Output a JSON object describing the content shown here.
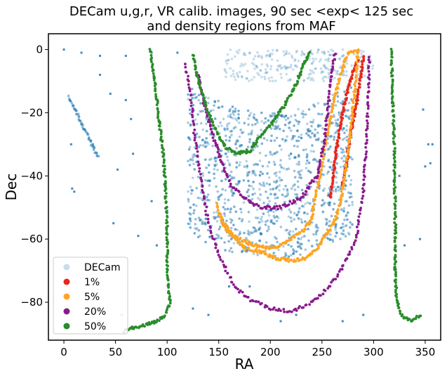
{
  "chart_data": {
    "type": "scatter",
    "title_line1": "DECam u,g,r, VR calib. images, 90 sec <exp< 125 sec",
    "title_line2": "and density regions from MAF",
    "xlabel": "RA",
    "ylabel": "Dec",
    "xlim": [
      -15,
      365
    ],
    "ylim": [
      -92,
      5
    ],
    "xticks": [
      0,
      50,
      100,
      150,
      200,
      250,
      300,
      350
    ],
    "yticks": [
      0,
      -20,
      -40,
      -60,
      -80
    ],
    "legend_position": "lower-left",
    "series": [
      {
        "name": "DECam",
        "color": "#1f77b4",
        "regions": {
          "top_band": {
            "ra": [
              155,
              300
            ],
            "dec": [
              -10,
              0
            ]
          },
          "dense_bowl_pattern": "points near the lower parts of the magenta, orange and red curves and inside them, between RA 120 and 275",
          "diagonal_stripe": {
            "start": [
              5,
              -15
            ],
            "end": [
              33,
              -34
            ]
          },
          "scattered": [
            [
              0,
              0
            ],
            [
              17,
              -1
            ],
            [
              35,
              -2
            ],
            [
              60,
              -2
            ],
            [
              85,
              -1
            ],
            [
              110,
              -1
            ],
            [
              7,
              -30
            ],
            [
              28,
              -30
            ],
            [
              65,
              -22
            ],
            [
              67,
              -33
            ],
            [
              52,
              -38
            ],
            [
              8,
              -44
            ],
            [
              10,
              -45
            ],
            [
              48,
              -55
            ],
            [
              72,
              -59
            ],
            [
              56,
              -84
            ],
            [
              80,
              -87
            ],
            [
              125,
              -82
            ],
            [
              140,
              -84
            ],
            [
              160,
              -75
            ],
            [
              180,
              -75
            ],
            [
              210,
              -86
            ],
            [
              225,
              -84
            ],
            [
              270,
              -86
            ],
            [
              290,
              -84
            ],
            [
              325,
              -40
            ],
            [
              348,
              -19
            ],
            [
              350,
              -37
            ],
            [
              355,
              -36
            ],
            [
              345,
              -60
            ],
            [
              353,
              -30
            ],
            [
              357,
              -30
            ],
            [
              320,
              -69
            ],
            [
              330,
              -62
            ],
            [
              35,
              -8
            ],
            [
              45,
              -14
            ],
            [
              60,
              -16
            ],
            [
              90,
              -62
            ],
            [
              100,
              -51
            ],
            [
              85,
              -48
            ],
            [
              220,
              -33
            ],
            [
              230,
              -28
            ]
          ]
        }
      },
      {
        "name": "1%",
        "color": "#e8261b",
        "curve": {
          "left_arm": [
            [
              258,
              -47
            ],
            [
              261,
              -40
            ],
            [
              263,
              -34
            ],
            [
              266,
              -28
            ],
            [
              270,
              -20
            ],
            [
              274,
              -14
            ],
            [
              279,
              -8
            ],
            [
              285,
              -3
            ]
          ],
          "right_arm": [
            [
              269,
              -43
            ],
            [
              273,
              -38
            ],
            [
              276,
              -30
            ],
            [
              280,
              -23
            ],
            [
              284,
              -16
            ],
            [
              288,
              -8
            ],
            [
              290,
              -2
            ]
          ]
        }
      },
      {
        "name": "5%",
        "color": "#ffa523",
        "curve": {
          "points": [
            [
              148,
              -49
            ],
            [
              150,
              -51
            ],
            [
              155,
              -56
            ],
            [
              160,
              -58
            ],
            [
              170,
              -60
            ],
            [
              185,
              -62
            ],
            [
              205,
              -63
            ],
            [
              220,
              -60
            ],
            [
              232,
              -57
            ],
            [
              240,
              -54
            ],
            [
              243,
              -47
            ],
            [
              248,
              -40
            ],
            [
              252,
              -32
            ],
            [
              257,
              -24
            ],
            [
              262,
              -16
            ],
            [
              268,
              -8
            ],
            [
              275,
              -1
            ],
            [
              285,
              0
            ],
            [
              282,
              -12
            ],
            [
              279,
              -22
            ],
            [
              276,
              -30
            ],
            [
              272,
              -40
            ],
            [
              268,
              -48
            ],
            [
              262,
              -55
            ],
            [
              255,
              -58
            ],
            [
              245,
              -63
            ],
            [
              235,
              -66
            ],
            [
              222,
              -67
            ],
            [
              205,
              -66
            ],
            [
              190,
              -64
            ],
            [
              176,
              -63
            ],
            [
              163,
              -59
            ],
            [
              155,
              -55
            ]
          ]
        }
      },
      {
        "name": "20%",
        "color": "#8b1a8e",
        "curve": {
          "outer": [
            [
              118,
              -5
            ],
            [
              122,
              -12
            ],
            [
              126,
              -25
            ],
            [
              132,
              -40
            ],
            [
              140,
              -55
            ],
            [
              150,
              -65
            ],
            [
              165,
              -75
            ],
            [
              180,
              -79
            ],
            [
              200,
              -82
            ],
            [
              222,
              -83
            ],
            [
              245,
              -79
            ],
            [
              265,
              -72
            ],
            [
              283,
              -60
            ],
            [
              290,
              -45
            ],
            [
              293,
              -30
            ],
            [
              295,
              -12
            ],
            [
              296,
              -2
            ]
          ],
          "inner": [
            [
              130,
              -8
            ],
            [
              135,
              -16
            ],
            [
              143,
              -26
            ],
            [
              152,
              -35
            ],
            [
              162,
              -43
            ],
            [
              175,
              -47
            ],
            [
              190,
              -50
            ],
            [
              210,
              -50
            ],
            [
              230,
              -47
            ],
            [
              245,
              -40
            ],
            [
              252,
              -30
            ],
            [
              256,
              -18
            ],
            [
              260,
              -6
            ],
            [
              263,
              -1
            ]
          ]
        }
      },
      {
        "name": "50%",
        "color": "#2a8c2a",
        "curve": {
          "left_arc": [
            [
              125,
              -2
            ],
            [
              128,
              -7
            ],
            [
              133,
              -13
            ],
            [
              140,
              -20
            ],
            [
              148,
              -26
            ],
            [
              157,
              -31
            ],
            [
              168,
              -33
            ],
            [
              180,
              -32
            ],
            [
              192,
              -27
            ],
            [
              202,
              -23
            ],
            [
              213,
              -18
            ],
            [
              225,
              -11
            ],
            [
              232,
              -5
            ],
            [
              238,
              -1
            ]
          ],
          "left_vertical": [
            [
              84,
              0
            ],
            [
              88,
              -10
            ],
            [
              92,
              -22
            ],
            [
              96,
              -32
            ],
            [
              98,
              -42
            ],
            [
              100,
              -55
            ],
            [
              100,
              -66
            ],
            [
              101,
              -74
            ],
            [
              103,
              -80
            ],
            [
              98,
              -84
            ],
            [
              90,
              -86
            ],
            [
              80,
              -87
            ],
            [
              68,
              -88
            ],
            [
              58,
              -89
            ]
          ],
          "right_vertical": [
            [
              317,
              0
            ],
            [
              318,
              -10
            ],
            [
              319,
              -20
            ],
            [
              320,
              -30
            ],
            [
              320,
              -40
            ],
            [
              321,
              -50
            ],
            [
              321,
              -60
            ],
            [
              321,
              -70
            ],
            [
              322,
              -78
            ],
            [
              325,
              -83
            ],
            [
              330,
              -85
            ],
            [
              337,
              -86
            ],
            [
              345,
              -84
            ]
          ]
        }
      }
    ]
  }
}
